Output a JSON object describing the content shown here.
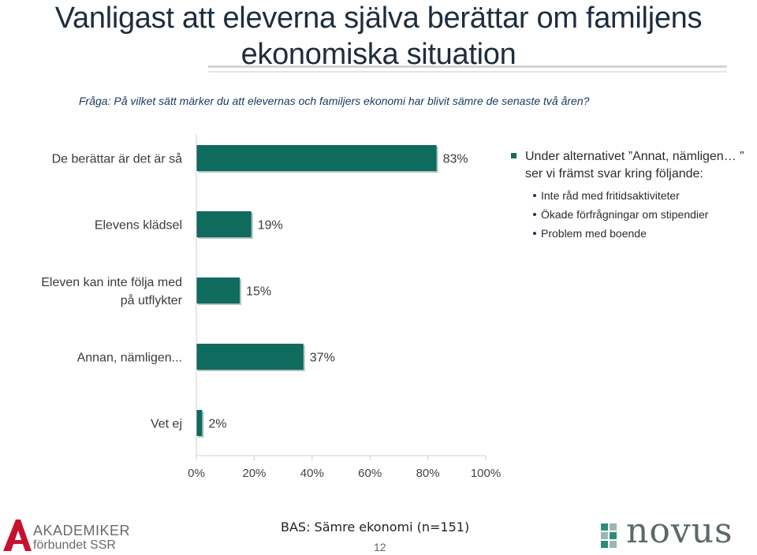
{
  "slide": {
    "title_line1": "Vanligast att eleverna själva berättar om familjens",
    "title_line2": "ekonomiska situation",
    "question": "Fråga: På vilket sätt märker du att elevernas och familjers ekonomi har blivit sämre de senaste två åren?",
    "base": "BAS: Sämre ekonomi (n=151)",
    "page_number": "12"
  },
  "chart_data": {
    "type": "bar",
    "orientation": "horizontal",
    "categories": [
      [
        "De berättar är det är så"
      ],
      [
        "Elevens klädsel"
      ],
      [
        "Eleven kan inte följa med",
        "på utflykter"
      ],
      [
        "Annan, nämligen..."
      ],
      [
        "Vet ej"
      ]
    ],
    "values": [
      83,
      19,
      15,
      37,
      2
    ],
    "value_labels": [
      "83%",
      "19%",
      "15%",
      "37%",
      "2%"
    ],
    "xlim": [
      0,
      100
    ],
    "x_ticks": [
      0,
      20,
      40,
      60,
      80,
      100
    ],
    "x_tick_labels": [
      "0%",
      "20%",
      "40%",
      "60%",
      "80%",
      "100%"
    ],
    "bar_color": "#0f6b5e",
    "grid": false
  },
  "note": {
    "main": "Under alternativet ”Annat, nämligen… ” ser vi främst svar kring följande:",
    "items": [
      "Inte råd med fritidsaktiviteter",
      "Ökade förfrågningar om stipendier",
      "Problem med boende"
    ]
  },
  "logos": {
    "left_line1": "AKADEMIKER",
    "left_line2": "förbundet SSR",
    "right_word": "novus"
  },
  "colors": {
    "accent_red": "#c8102e",
    "novus_teal": "#2e8b7a",
    "novus_grey": "#5a6a64"
  }
}
